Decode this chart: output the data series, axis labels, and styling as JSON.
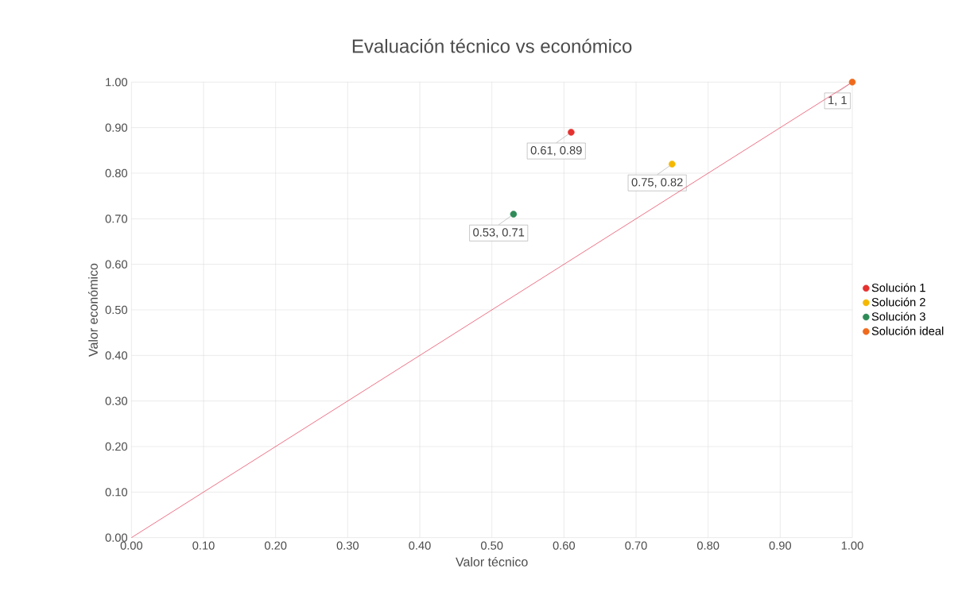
{
  "chart_data": {
    "type": "scatter",
    "title": "Evaluación técnico vs económico",
    "xlabel": "Valor técnico",
    "ylabel": "Valor económico",
    "xlim": [
      0,
      1
    ],
    "ylim": [
      0,
      1
    ],
    "xticks": [
      {
        "value": 0,
        "label": "0.00"
      },
      {
        "value": 0.1,
        "label": "0.10"
      },
      {
        "value": 0.2,
        "label": "0.20"
      },
      {
        "value": 0.3,
        "label": "0.30"
      },
      {
        "value": 0.4,
        "label": "0.40"
      },
      {
        "value": 0.5,
        "label": "0.50"
      },
      {
        "value": 0.6,
        "label": "0.60"
      },
      {
        "value": 0.7,
        "label": "0.70"
      },
      {
        "value": 0.8,
        "label": "0.80"
      },
      {
        "value": 0.9,
        "label": "0.90"
      },
      {
        "value": 1,
        "label": "1.00"
      }
    ],
    "yticks": [
      {
        "value": 0,
        "label": "0.00"
      },
      {
        "value": 0.1,
        "label": "0.10"
      },
      {
        "value": 0.2,
        "label": "0.20"
      },
      {
        "value": 0.3,
        "label": "0.30"
      },
      {
        "value": 0.4,
        "label": "0.40"
      },
      {
        "value": 0.5,
        "label": "0.50"
      },
      {
        "value": 0.6,
        "label": "0.60"
      },
      {
        "value": 0.7,
        "label": "0.70"
      },
      {
        "value": 0.8,
        "label": "0.80"
      },
      {
        "value": 0.9,
        "label": "0.90"
      },
      {
        "value": 1,
        "label": "1.00"
      }
    ],
    "grid": true,
    "legend": "right",
    "series": [
      {
        "name": "Solución 1",
        "marker": "circle",
        "color": "#e5312f",
        "x": [
          0.61
        ],
        "values": [
          0.89
        ],
        "value_labels": [
          "0.61, 0.89"
        ]
      },
      {
        "name": "Solución 2",
        "marker": "circle",
        "color": "#f5b800",
        "x": [
          0.75
        ],
        "values": [
          0.82
        ],
        "value_labels": [
          "0.75, 0.82"
        ]
      },
      {
        "name": "Solución 3",
        "marker": "circle",
        "color": "#2e8b57",
        "x": [
          0.53
        ],
        "values": [
          0.71
        ],
        "value_labels": [
          "0.53, 0.71"
        ]
      },
      {
        "name": "Solución ideal",
        "marker": "circle",
        "color": "#f06a1c",
        "x": [
          1
        ],
        "values": [
          1
        ],
        "value_labels": [
          "1, 1"
        ]
      },
      {
        "type": "line",
        "marker": "none",
        "color": "#e8506a",
        "x": [
          0,
          1
        ],
        "values": [
          0,
          1
        ]
      }
    ]
  }
}
